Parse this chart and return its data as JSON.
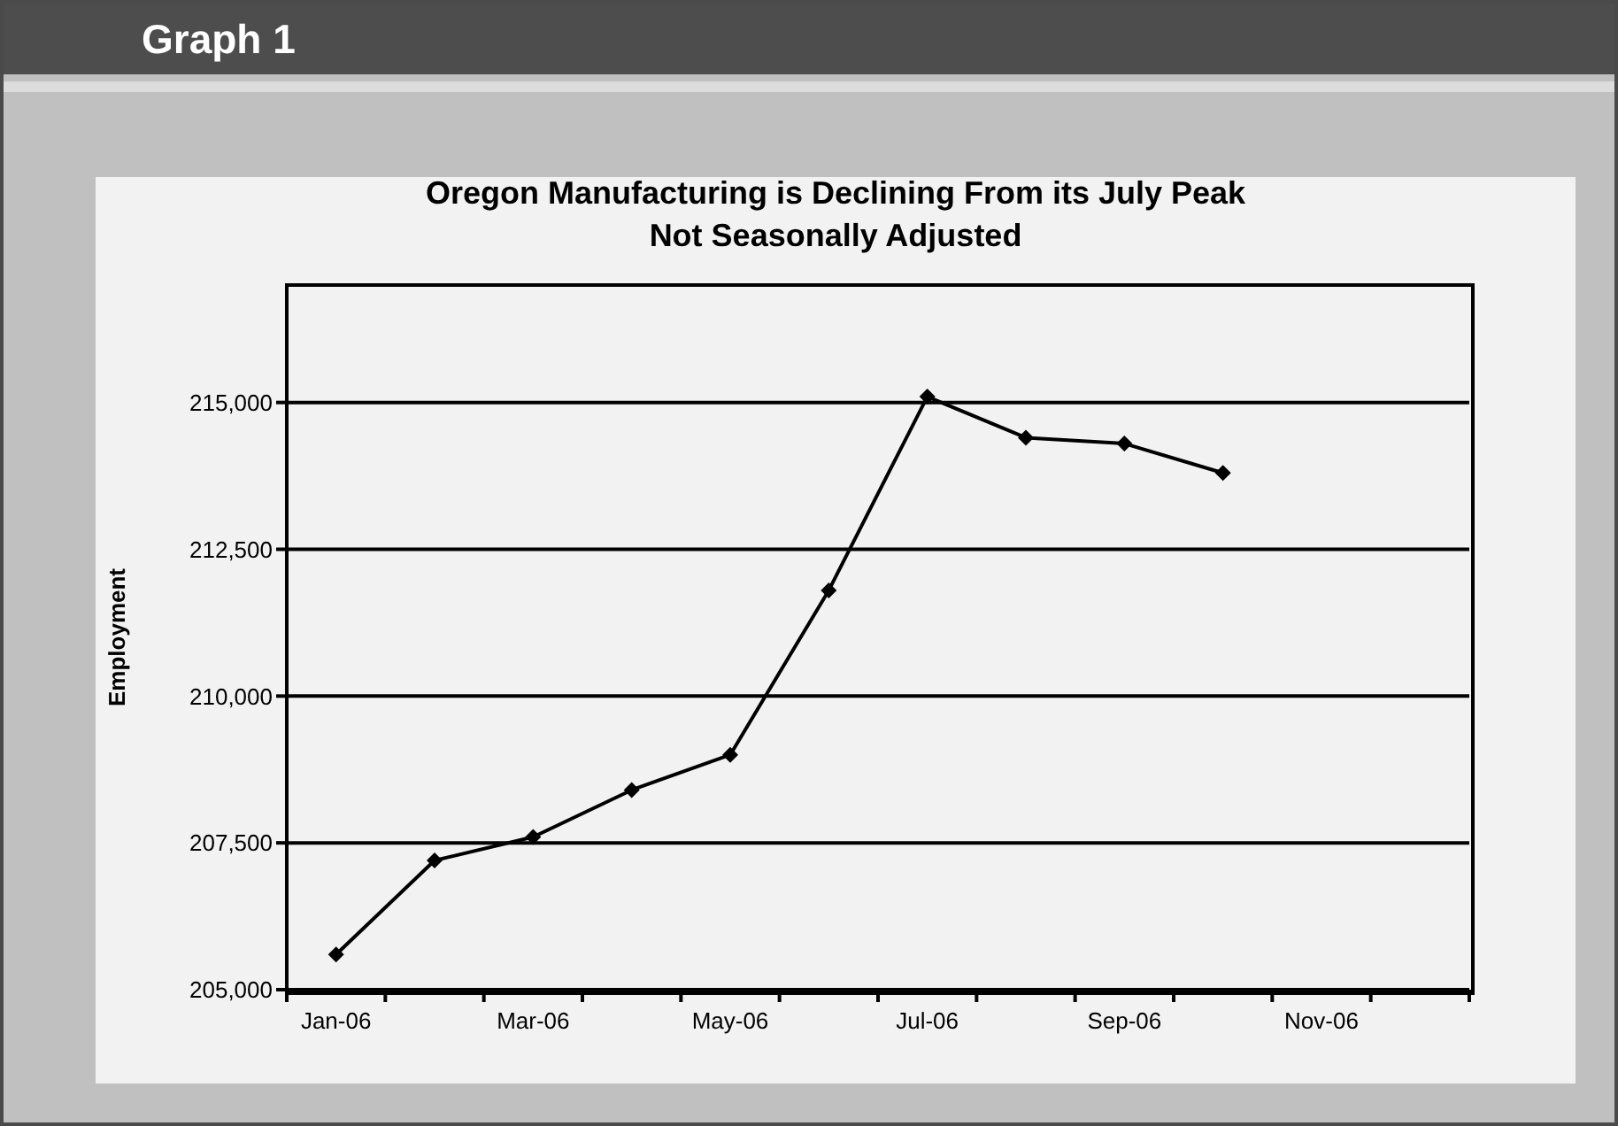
{
  "chart_data": {
    "type": "line",
    "title": "Oregon Manufacturing is Declining From its July Peak",
    "subtitle": "Not Seasonally Adjusted",
    "ylabel": "Employment",
    "annotations": [
      "Graph 1"
    ],
    "categories": [
      "Jan-06",
      null,
      "Mar-06",
      null,
      "May-06",
      null,
      "Jul-06",
      null,
      "Sep-06",
      null,
      "Nov-06",
      null
    ],
    "series": [
      {
        "color": "#000000",
        "values": [
          205600,
          207200,
          207600,
          208400,
          209000,
          211800,
          215100,
          214400,
          214300,
          213800,
          null,
          null
        ]
      }
    ],
    "ylim": [
      205000,
      217000
    ],
    "yticks": [
      {
        "value": 205000,
        "label": "205,000"
      },
      {
        "value": 207500,
        "label": "207,500"
      },
      {
        "value": 210000,
        "label": "210,000"
      },
      {
        "value": 212500,
        "label": "212,500"
      },
      {
        "value": 215000,
        "label": "215,000"
      }
    ],
    "grid": "y",
    "marker": "diamond",
    "line_style": "solid",
    "legend": false
  }
}
